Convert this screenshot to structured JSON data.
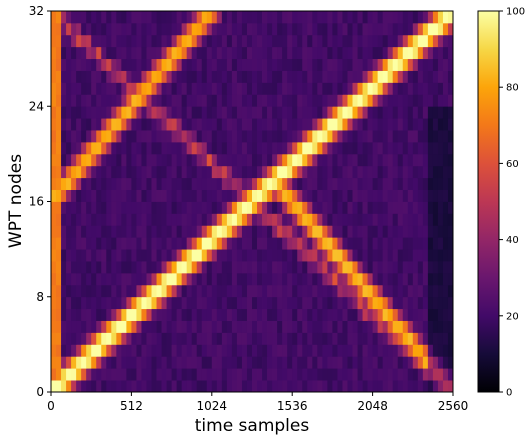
{
  "chart_data": {
    "type": "heatmap",
    "xlabel": "time samples",
    "ylabel": "WPT nodes",
    "xlim": [
      0,
      2560
    ],
    "ylim": [
      0,
      32
    ],
    "xticks": [
      "0",
      "512",
      "1024",
      "1536",
      "2048",
      "2560"
    ],
    "yticks": [
      "0",
      "8",
      "16",
      "24",
      "32"
    ],
    "colorbar": {
      "colormap": "inferno",
      "range": [
        0,
        100
      ],
      "ticks": [
        "0",
        "20",
        "40",
        "60",
        "80",
        "100"
      ]
    },
    "n_nodes": 32,
    "grid": false,
    "description_of_structure": {
      "ridges": [
        {
          "name": "rising chirp",
          "start": [
            0,
            0
          ],
          "end": [
            2560,
            32
          ],
          "peak": 100
        },
        {
          "name": "node-reflected chirp",
          "segments": [
            [
              [
                1536,
                16
              ],
              [
                2560,
                0
              ]
            ],
            [
              [
                0,
                16
              ],
              [
                1024,
                32
              ]
            ]
          ],
          "peak": 85
        }
      ],
      "left_edge_band": {
        "x_range": [
          0,
          60
        ],
        "value": 70
      }
    }
  }
}
